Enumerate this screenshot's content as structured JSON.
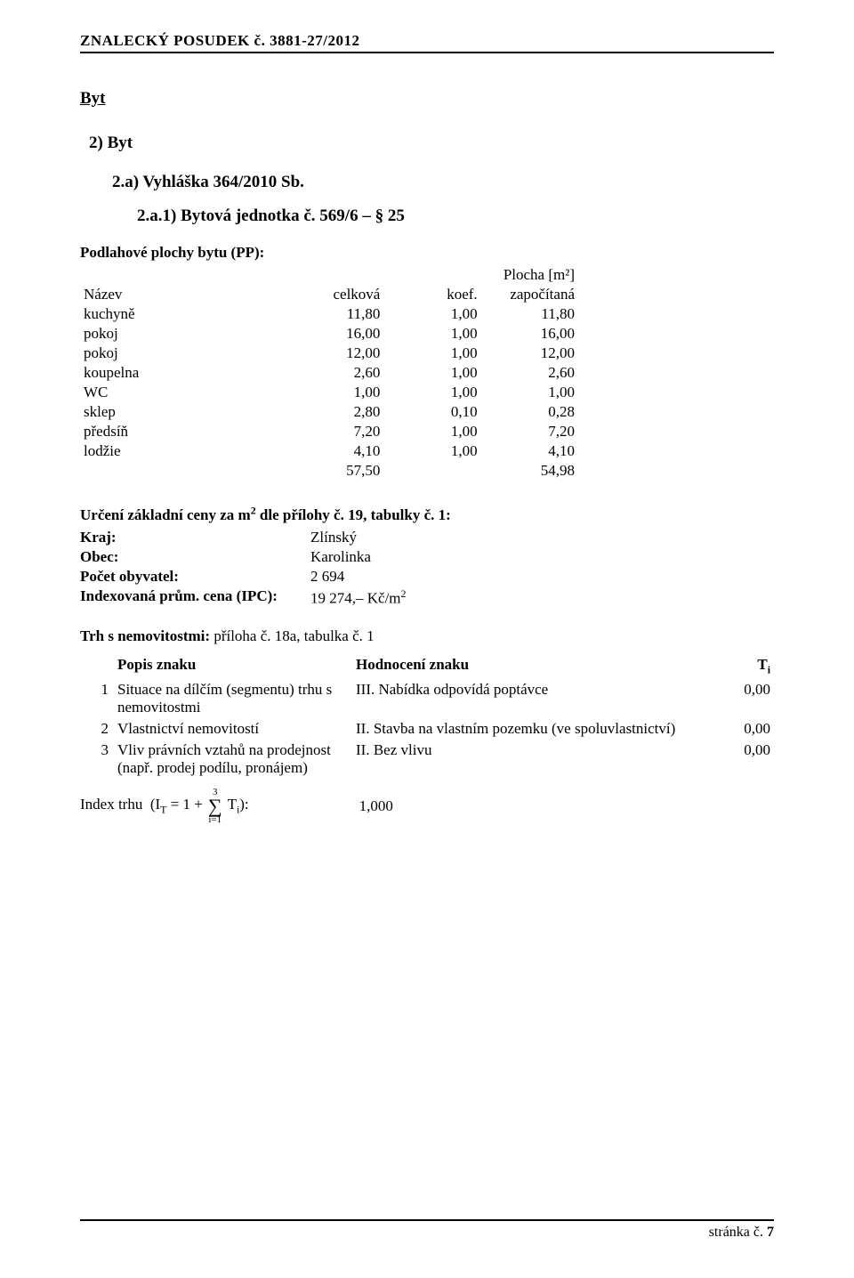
{
  "header": {
    "left": "ZNALECKÝ   POSUDEK č.",
    "num": "3881-27/2012"
  },
  "titles": {
    "byt": "Byt",
    "byt2": "2)  Byt",
    "a2": "2.a)  Vyhláška 364/2010 Sb.",
    "a21": "2.a.1)  Bytová jednotka č. 569/6 – § 25"
  },
  "plochy": {
    "title": "Podlahové plochy bytu (PP):",
    "unit_header": "Plocha [m²]",
    "cols": [
      "Název",
      "celková",
      "koef.",
      "započítaná"
    ],
    "rows": [
      {
        "name": "kuchyně",
        "c": "11,80",
        "k": "1,00",
        "z": "11,80"
      },
      {
        "name": "pokoj",
        "c": "16,00",
        "k": "1,00",
        "z": "16,00"
      },
      {
        "name": "pokoj",
        "c": "12,00",
        "k": "1,00",
        "z": "12,00"
      },
      {
        "name": "koupelna",
        "c": "2,60",
        "k": "1,00",
        "z": "2,60"
      },
      {
        "name": "WC",
        "c": "1,00",
        "k": "1,00",
        "z": "1,00"
      },
      {
        "name": "sklep",
        "c": "2,80",
        "k": "0,10",
        "z": "0,28"
      },
      {
        "name": "předsíň",
        "c": "7,20",
        "k": "1,00",
        "z": "7,20"
      },
      {
        "name": "lodžie",
        "c": "4,10",
        "k": "1,00",
        "z": "4,10"
      }
    ],
    "total": {
      "c": "57,50",
      "z": "54,98"
    }
  },
  "urceni": {
    "line": "Určení základní ceny za m² dle přílohy č. 19, tabulky č. 1:",
    "rows": [
      {
        "label": "Kraj:",
        "value": "Zlínský"
      },
      {
        "label": "Obec:",
        "value": "Karolinka"
      },
      {
        "label": "Počet obyvatel:",
        "value": "2 694"
      },
      {
        "label": "Indexovaná prům. cena (IPC):",
        "value": "19 274,–  Kč/m²"
      }
    ]
  },
  "trh": {
    "title_bold": "Trh s nemovitostmi:",
    "title_rest": " příloha č. 18a, tabulka č. 1",
    "headers": {
      "popis": "Popis znaku",
      "hodn": "Hodnocení znaku",
      "ti": "Tᵢ"
    },
    "rows": [
      {
        "i": "1",
        "popis": "Situace na dílčím (segmentu) trhu s nemovitostmi",
        "hodn": "III. Nabídka odpovídá poptávce",
        "ti": "0,00"
      },
      {
        "i": "2",
        "popis": "Vlastnictví nemovitostí",
        "hodn": "II. Stavba na vlastním pozemku (ve spoluvlastnictví)",
        "ti": "0,00"
      },
      {
        "i": "3",
        "popis": "Vliv právních vztahů na prodejnost (např. prodej podílu, pronájem)",
        "hodn": "II. Bez vlivu",
        "ti": "0,00"
      }
    ],
    "formula": {
      "prefix": "Index trhu  (Iᴛ = 1 + ",
      "upper": "3",
      "lower": "i=1",
      "after": " Tᵢ):",
      "value": "1,000"
    }
  },
  "footer": {
    "text": "stránka č. ",
    "num": "7"
  }
}
